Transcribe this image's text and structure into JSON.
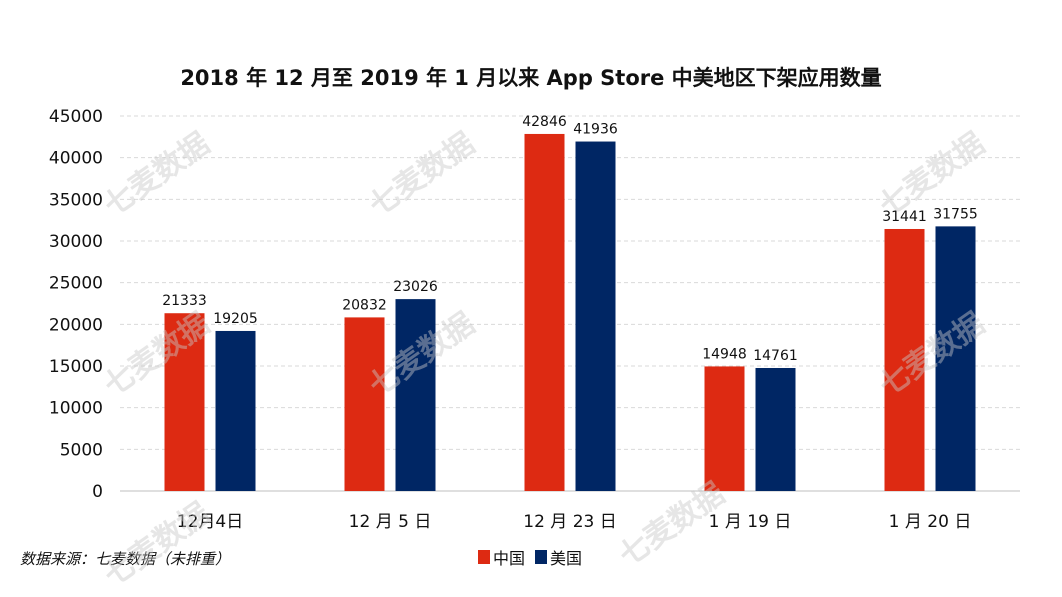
{
  "chart_data": {
    "type": "bar",
    "title": "2018 年 12 月至 2019 年 1 月以来 App Store 中美地区下架应用数量",
    "categories": [
      "12月4日",
      "12 月 5 日",
      "12 月 23 日",
      "1 月 19 日",
      "1 月 20 日"
    ],
    "series": [
      {
        "name": "中国",
        "color": "#DD2A12",
        "values": [
          21333,
          20832,
          42846,
          14948,
          31441
        ]
      },
      {
        "name": "美国",
        "color": "#002664",
        "values": [
          19205,
          23026,
          41936,
          14761,
          31755
        ]
      }
    ],
    "ylim": [
      0,
      45000
    ],
    "yticks": [
      0,
      5000,
      10000,
      15000,
      20000,
      25000,
      30000,
      35000,
      40000,
      45000
    ],
    "grid": true,
    "legend": "bottom",
    "xlabel": "",
    "ylabel": ""
  },
  "source": "数据来源：七麦数据（未排重）",
  "watermark": "七麦数据"
}
